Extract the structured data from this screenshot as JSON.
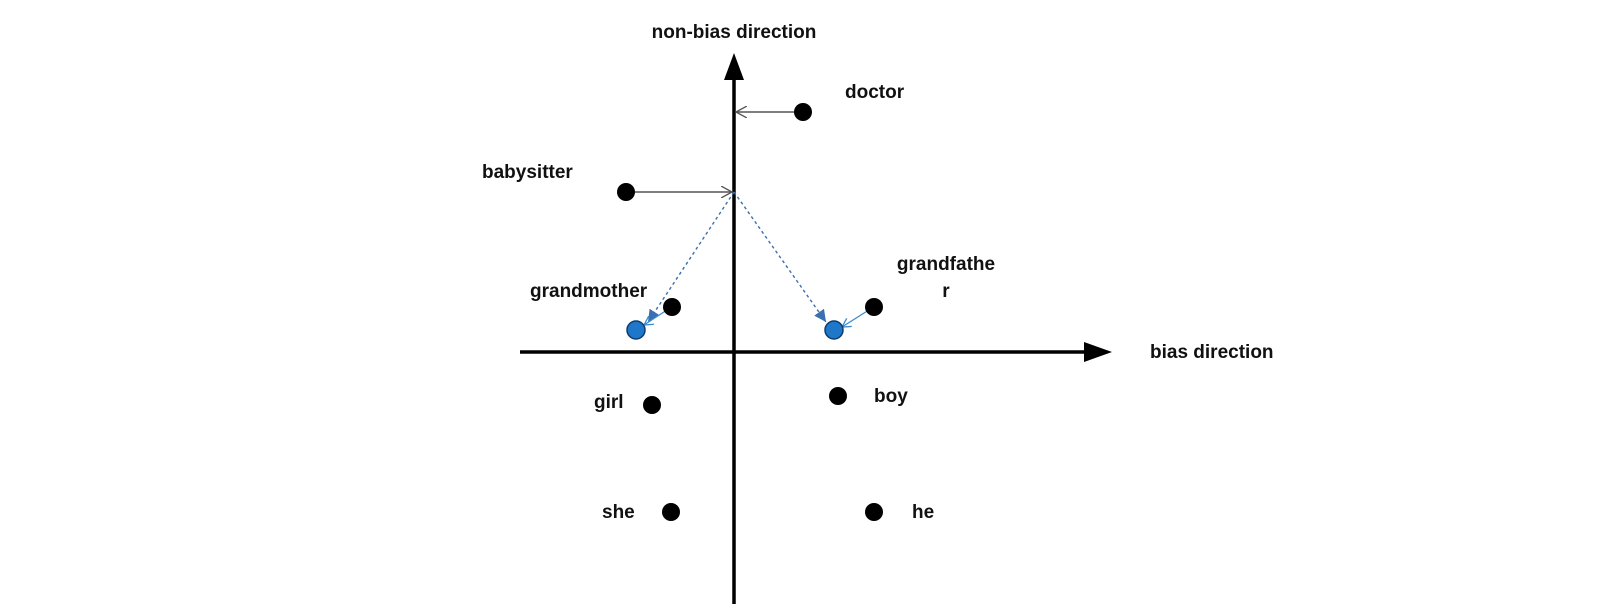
{
  "axes": {
    "x_label": "bias direction",
    "y_label": "non-bias direction"
  },
  "words": {
    "doctor": "doctor",
    "babysitter": "babysitter",
    "grandmother": "grandmother",
    "grandfather_line1": "grandfathe",
    "grandfather_line2": "r",
    "girl": "girl",
    "boy": "boy",
    "she": "she",
    "he": "he"
  },
  "colors": {
    "axis": "#000000",
    "point": "#000000",
    "projected_point": "#1f77c9",
    "projection_arrow": "#555555",
    "dotted_arrow": "#3a6fb0"
  }
}
